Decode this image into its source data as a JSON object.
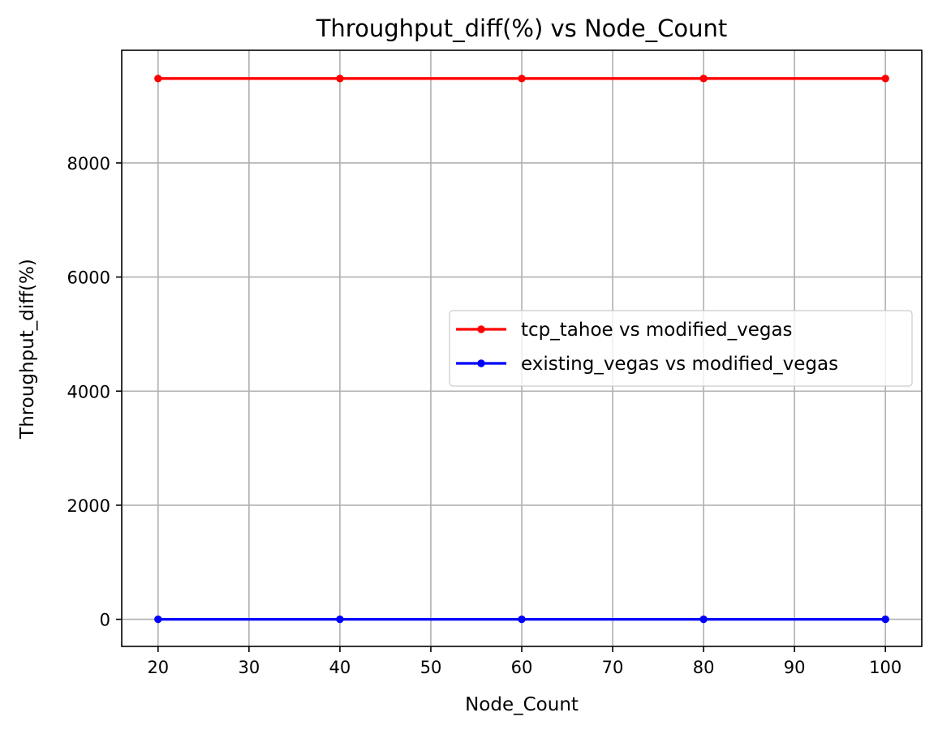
{
  "chart_data": {
    "type": "line",
    "title": "Throughput_diff(%) vs Node_Count",
    "xlabel": "Node_Count",
    "ylabel": "Throughput_diff(%)",
    "x": [
      20,
      40,
      60,
      80,
      100
    ],
    "xlim": [
      16,
      104
    ],
    "ylim": [
      -475,
      9975
    ],
    "xticks": [
      20,
      30,
      40,
      50,
      60,
      70,
      80,
      90,
      100
    ],
    "yticks": [
      0,
      2000,
      4000,
      6000,
      8000
    ],
    "grid": true,
    "legend_position": "center-right",
    "series": [
      {
        "name": "tcp_tahoe vs modified_vegas",
        "color": "#ff0000",
        "marker": "circle",
        "values": [
          9480,
          9480,
          9480,
          9480,
          9480
        ]
      },
      {
        "name": "existing_vegas vs modified_vegas",
        "color": "#0000ff",
        "marker": "circle",
        "values": [
          0,
          0,
          0,
          0,
          0
        ]
      }
    ]
  }
}
